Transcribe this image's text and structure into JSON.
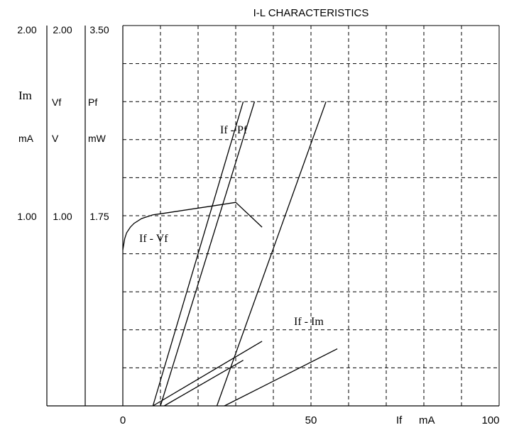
{
  "chart_data": {
    "type": "line",
    "title": "I-L CHARACTERISTICS",
    "xlabel": "If",
    "xunit": "mA",
    "xlim": [
      0,
      100
    ],
    "x_ticks": [
      "0",
      "50",
      "100"
    ],
    "grid": true,
    "y_axes": [
      {
        "name": "Im",
        "unit": "mA",
        "top": "2.00",
        "mid": "1.00",
        "ylim": [
          0,
          2.0
        ]
      },
      {
        "name": "Vf",
        "unit": "V",
        "top": "2.00",
        "mid": "1.00",
        "ylim": [
          0,
          2.0
        ]
      },
      {
        "name": "Pf",
        "unit": "mW",
        "top": "3.50",
        "mid": "1.75",
        "ylim": [
          0,
          3.5
        ]
      }
    ],
    "series": [
      {
        "name": "If - Vf",
        "axis": "Vf",
        "x": [
          0,
          0.5,
          1,
          2,
          3,
          5,
          8,
          10,
          15,
          20,
          25,
          30,
          37
        ],
        "y": [
          0.82,
          0.88,
          0.91,
          0.94,
          0.96,
          0.985,
          1.005,
          1.01,
          1.025,
          1.04,
          1.055,
          1.07,
          0.94
        ]
      },
      {
        "name": "If - Pf",
        "axis": "Pf",
        "x": [
          8,
          32
        ],
        "y": [
          0,
          2.8
        ]
      },
      {
        "name": "If - Pf",
        "axis": "Pf",
        "x": [
          10,
          35
        ],
        "y": [
          0,
          2.8
        ]
      },
      {
        "name": "",
        "axis": "Pf",
        "x": [
          25,
          54
        ],
        "y": [
          0,
          2.8
        ]
      },
      {
        "name": "",
        "axis": "Im",
        "x": [
          8,
          37
        ],
        "y": [
          0,
          0.34
        ]
      },
      {
        "name": "",
        "axis": "Im",
        "x": [
          11,
          32
        ],
        "y": [
          0,
          0.24
        ]
      },
      {
        "name": "If - Im",
        "axis": "Im",
        "x": [
          27,
          57
        ],
        "y": [
          0,
          0.3
        ]
      }
    ],
    "annotations": [
      {
        "text": "If - Pf",
        "series": "If - Pf"
      },
      {
        "text": "If - Vf",
        "series": "If - Vf"
      },
      {
        "text": "If - Im",
        "series": "If - Im"
      }
    ]
  }
}
